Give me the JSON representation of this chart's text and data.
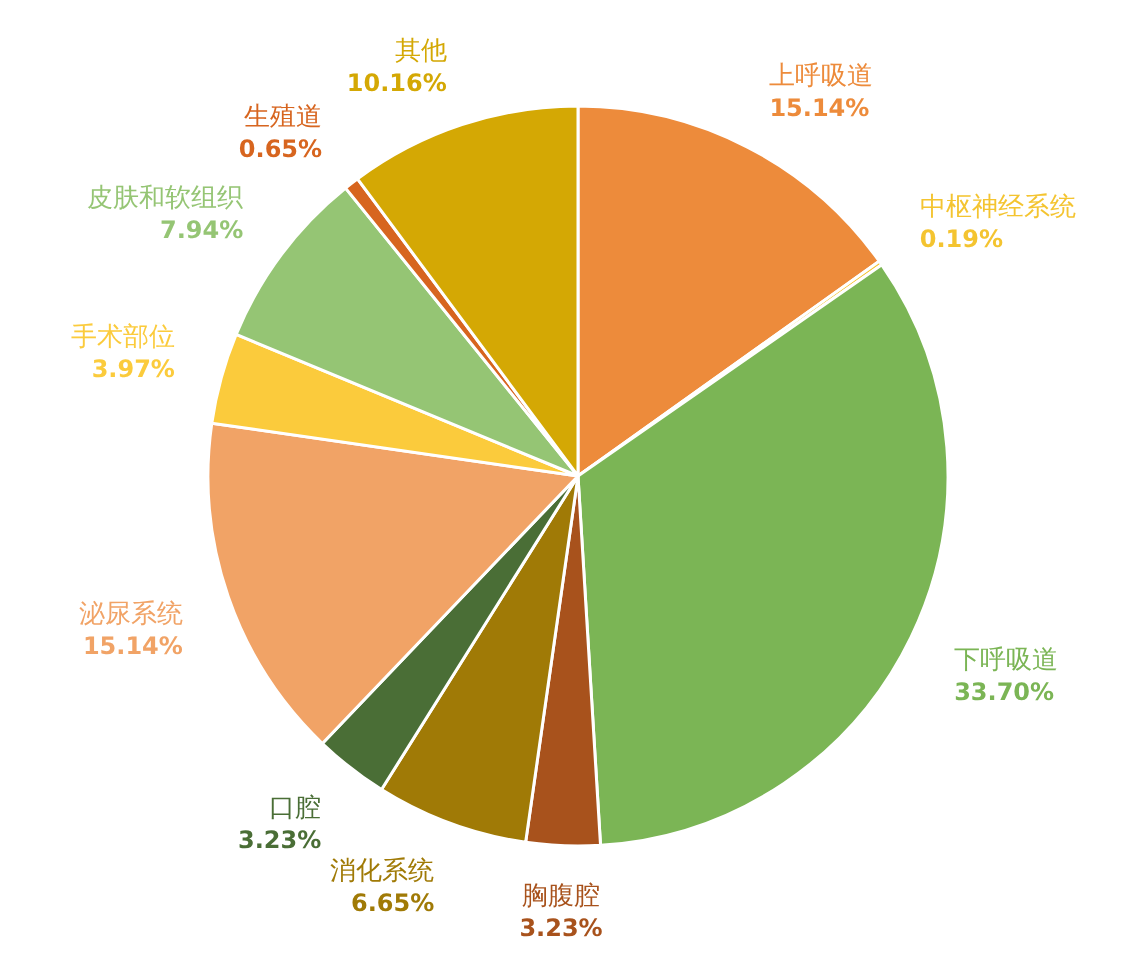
{
  "chart_data": {
    "type": "pie",
    "categories": [
      "上呼吸道",
      "中枢神经系统",
      "下呼吸道",
      "胸腹腔",
      "消化系统",
      "口腔",
      "泌尿系统",
      "手术部位",
      "皮肤和软组织",
      "生殖道",
      "其他"
    ],
    "values": [
      15.14,
      0.19,
      33.7,
      3.23,
      6.65,
      3.23,
      15.14,
      3.97,
      7.94,
      0.65,
      10.16
    ],
    "value_labels": [
      "15.14%",
      "0.19%",
      "33.70%",
      "3.23%",
      "6.65%",
      "3.23%",
      "15.14%",
      "3.97%",
      "7.94%",
      "0.65%",
      "10.16%"
    ],
    "colors": [
      "#ed8b3b",
      "#f4c430",
      "#7bb555",
      "#a8521c",
      "#a07a06",
      "#4a6e36",
      "#f1a366",
      "#fbcb3c",
      "#95c574",
      "#d7651f",
      "#d4a804"
    ]
  }
}
